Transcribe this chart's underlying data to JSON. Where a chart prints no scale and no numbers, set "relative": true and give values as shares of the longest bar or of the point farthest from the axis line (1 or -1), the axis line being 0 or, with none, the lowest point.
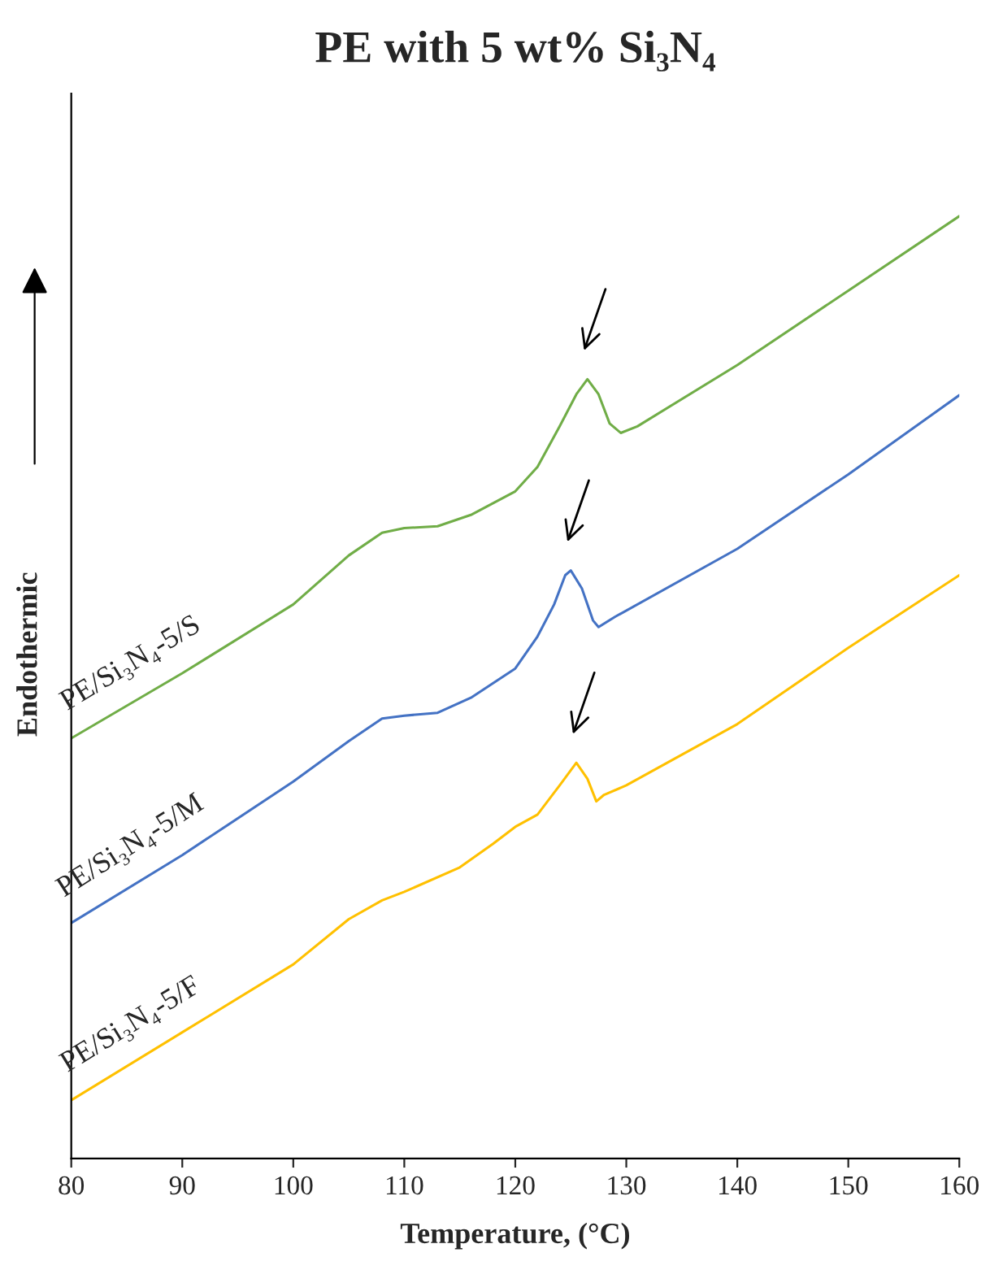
{
  "chart_data": {
    "type": "line",
    "title": "PE with 5 wt% Si₃N₄",
    "xlabel": "Temperature, (°C)",
    "ylabel": "Endothermic",
    "relative": true,
    "xlim": [
      80,
      160
    ],
    "xticks": [
      80,
      90,
      100,
      110,
      120,
      130,
      140,
      150,
      160
    ],
    "grid": false,
    "marker": "none",
    "line_style": "solid",
    "series": [
      {
        "name": "PE/Si₃N₄-5/S",
        "color": "#70ad47",
        "x": [
          80,
          90,
          100,
          105,
          108,
          110,
          113,
          116,
          120,
          122,
          124,
          125.5,
          126.5,
          127.5,
          128.5,
          129.5,
          131,
          140,
          150,
          160
        ],
        "values": [
          0.446,
          0.515,
          0.588,
          0.64,
          0.664,
          0.669,
          0.671,
          0.683,
          0.708,
          0.734,
          0.777,
          0.811,
          0.827,
          0.811,
          0.78,
          0.77,
          0.777,
          0.842,
          0.921,
          1.0
        ]
      },
      {
        "name": "PE/Si₃N₄-5/M",
        "color": "#4472c4",
        "x": [
          80,
          90,
          100,
          105,
          108,
          110,
          113,
          116,
          120,
          122,
          123.5,
          124.5,
          125,
          126,
          127,
          127.5,
          129,
          140,
          150,
          160
        ],
        "values": [
          0.25,
          0.322,
          0.4,
          0.443,
          0.467,
          0.47,
          0.473,
          0.489,
          0.52,
          0.554,
          0.588,
          0.619,
          0.624,
          0.605,
          0.571,
          0.564,
          0.575,
          0.647,
          0.726,
          0.81
        ]
      },
      {
        "name": "PE/Si₃N₄-5/F",
        "color": "#ffc000",
        "x": [
          80,
          90,
          100,
          105,
          108,
          110,
          115,
          118,
          120,
          122,
          124,
          125.5,
          126.5,
          127.3,
          128,
          130,
          140,
          150,
          160
        ],
        "values": [
          0.062,
          0.134,
          0.206,
          0.254,
          0.274,
          0.283,
          0.309,
          0.334,
          0.352,
          0.365,
          0.396,
          0.42,
          0.403,
          0.379,
          0.386,
          0.396,
          0.461,
          0.542,
          0.619
        ]
      }
    ]
  }
}
